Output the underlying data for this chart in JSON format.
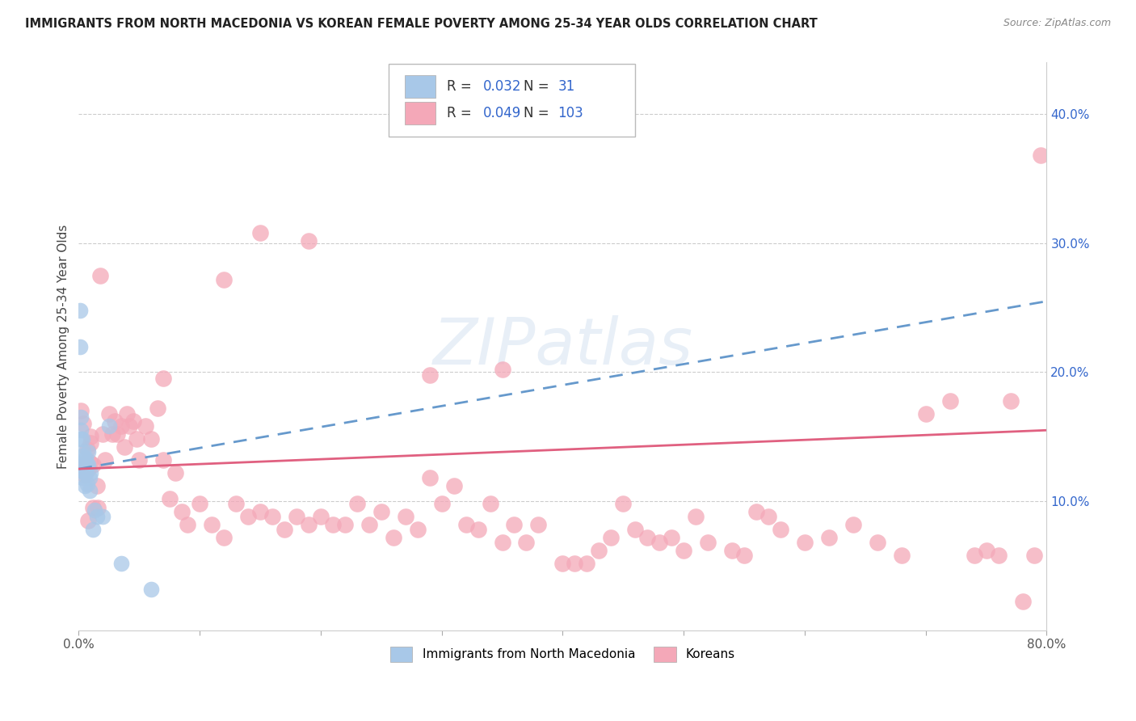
{
  "title": "IMMIGRANTS FROM NORTH MACEDONIA VS KOREAN FEMALE POVERTY AMONG 25-34 YEAR OLDS CORRELATION CHART",
  "source": "Source: ZipAtlas.com",
  "ylabel": "Female Poverty Among 25-34 Year Olds",
  "xlim": [
    0.0,
    0.8
  ],
  "ylim": [
    0.0,
    0.44
  ],
  "xticks": [
    0.0,
    0.1,
    0.2,
    0.3,
    0.4,
    0.5,
    0.6,
    0.7,
    0.8
  ],
  "xticklabels": [
    "0.0%",
    "",
    "",
    "",
    "",
    "",
    "",
    "",
    "80.0%"
  ],
  "yticks_right": [
    0.1,
    0.2,
    0.3,
    0.4
  ],
  "ytick_labels_right": [
    "10.0%",
    "20.0%",
    "30.0%",
    "40.0%"
  ],
  "legend_R1": "0.032",
  "legend_N1": "31",
  "legend_R2": "0.049",
  "legend_N2": "103",
  "legend_label1": "Immigrants from North Macedonia",
  "legend_label2": "Koreans",
  "color_blue": "#a8c8e8",
  "color_pink": "#f4a8b8",
  "color_blue_line": "#6699cc",
  "color_pink_line": "#e06080",
  "color_blue_text": "#3366cc",
  "watermark": "ZIPatlas",
  "nm_line_x0": 0.0,
  "nm_line_y0": 0.125,
  "nm_line_x1": 0.8,
  "nm_line_y1": 0.255,
  "ko_line_x0": 0.0,
  "ko_line_y0": 0.125,
  "ko_line_x1": 0.8,
  "ko_line_y1": 0.155,
  "north_mac_x": [
    0.001,
    0.001,
    0.002,
    0.002,
    0.002,
    0.003,
    0.003,
    0.003,
    0.003,
    0.004,
    0.004,
    0.004,
    0.005,
    0.005,
    0.005,
    0.006,
    0.006,
    0.007,
    0.007,
    0.008,
    0.008,
    0.009,
    0.009,
    0.01,
    0.012,
    0.013,
    0.015,
    0.02,
    0.025,
    0.035,
    0.06
  ],
  "north_mac_y": [
    0.248,
    0.22,
    0.165,
    0.155,
    0.148,
    0.148,
    0.135,
    0.128,
    0.118,
    0.138,
    0.13,
    0.123,
    0.128,
    0.122,
    0.112,
    0.133,
    0.122,
    0.128,
    0.113,
    0.138,
    0.128,
    0.118,
    0.108,
    0.122,
    0.078,
    0.093,
    0.088,
    0.088,
    0.158,
    0.052,
    0.032
  ],
  "korean_x": [
    0.002,
    0.004,
    0.005,
    0.006,
    0.007,
    0.008,
    0.008,
    0.009,
    0.01,
    0.012,
    0.012,
    0.015,
    0.016,
    0.018,
    0.02,
    0.022,
    0.025,
    0.028,
    0.03,
    0.032,
    0.035,
    0.038,
    0.04,
    0.042,
    0.045,
    0.048,
    0.05,
    0.055,
    0.06,
    0.065,
    0.07,
    0.075,
    0.08,
    0.085,
    0.09,
    0.1,
    0.11,
    0.12,
    0.13,
    0.14,
    0.15,
    0.16,
    0.17,
    0.18,
    0.19,
    0.2,
    0.21,
    0.22,
    0.23,
    0.24,
    0.25,
    0.26,
    0.27,
    0.28,
    0.29,
    0.3,
    0.31,
    0.32,
    0.33,
    0.34,
    0.35,
    0.36,
    0.37,
    0.38,
    0.4,
    0.41,
    0.42,
    0.43,
    0.44,
    0.45,
    0.46,
    0.47,
    0.48,
    0.49,
    0.5,
    0.51,
    0.52,
    0.54,
    0.55,
    0.56,
    0.57,
    0.58,
    0.6,
    0.62,
    0.64,
    0.66,
    0.68,
    0.7,
    0.72,
    0.74,
    0.75,
    0.76,
    0.77,
    0.78,
    0.79,
    0.795,
    0.35,
    0.29,
    0.19,
    0.15,
    0.12,
    0.07,
    0.01
  ],
  "korean_y": [
    0.17,
    0.16,
    0.12,
    0.13,
    0.14,
    0.125,
    0.085,
    0.13,
    0.15,
    0.095,
    0.128,
    0.112,
    0.095,
    0.275,
    0.152,
    0.132,
    0.168,
    0.152,
    0.162,
    0.152,
    0.158,
    0.142,
    0.168,
    0.158,
    0.162,
    0.148,
    0.132,
    0.158,
    0.148,
    0.172,
    0.132,
    0.102,
    0.122,
    0.092,
    0.082,
    0.098,
    0.082,
    0.072,
    0.098,
    0.088,
    0.092,
    0.088,
    0.078,
    0.088,
    0.082,
    0.088,
    0.082,
    0.082,
    0.098,
    0.082,
    0.092,
    0.072,
    0.088,
    0.078,
    0.118,
    0.098,
    0.112,
    0.082,
    0.078,
    0.098,
    0.068,
    0.082,
    0.068,
    0.082,
    0.052,
    0.052,
    0.052,
    0.062,
    0.072,
    0.098,
    0.078,
    0.072,
    0.068,
    0.072,
    0.062,
    0.088,
    0.068,
    0.062,
    0.058,
    0.092,
    0.088,
    0.078,
    0.068,
    0.072,
    0.082,
    0.068,
    0.058,
    0.168,
    0.178,
    0.058,
    0.062,
    0.058,
    0.178,
    0.022,
    0.058,
    0.368,
    0.202,
    0.198,
    0.302,
    0.308,
    0.272,
    0.195,
    0.145
  ]
}
